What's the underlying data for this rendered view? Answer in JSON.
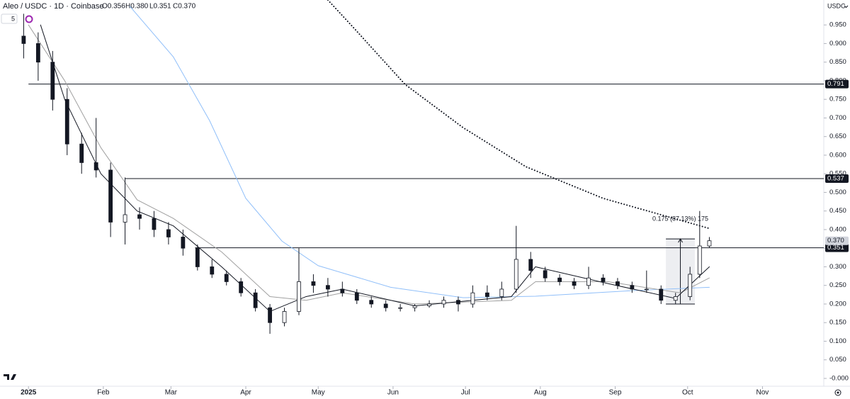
{
  "header": {
    "symbol": "Aleo / USDC · 1D · Coinbase",
    "ohlc": [
      "O0.356",
      "H0.380",
      "L0.351",
      "C0.370"
    ],
    "indicator_count": "5",
    "currency": "USDC"
  },
  "chart_data": {
    "type": "candlestick",
    "up_color": "#ffffff",
    "down_color": "#131722",
    "xlim": [
      -11.8,
      329.4
    ],
    "ylim": [
      -0.021,
      1.017
    ],
    "xticks": [
      {
        "value": 0,
        "label": "2025"
      },
      {
        "value": 31,
        "label": "Feb"
      },
      {
        "value": 59,
        "label": "Mar"
      },
      {
        "value": 90,
        "label": "Apr"
      },
      {
        "value": 120,
        "label": "May"
      },
      {
        "value": 151,
        "label": "Jun"
      },
      {
        "value": 181,
        "label": "Jul"
      },
      {
        "value": 212,
        "label": "Aug"
      },
      {
        "value": 243,
        "label": "Sep"
      },
      {
        "value": 273,
        "label": "Oct"
      },
      {
        "value": 304,
        "label": "Nov"
      }
    ],
    "yticks": [
      {
        "value": 0,
        "label": "-0.000"
      },
      {
        "value": 0.05,
        "label": "0.050"
      },
      {
        "value": 0.1,
        "label": "0.100"
      },
      {
        "value": 0.15,
        "label": "0.150"
      },
      {
        "value": 0.2,
        "label": "0.200"
      },
      {
        "value": 0.25,
        "label": "0.250"
      },
      {
        "value": 0.3,
        "label": "0.300"
      },
      {
        "value": 0.35,
        "label": "0.350"
      },
      {
        "value": 0.4,
        "label": "0.400"
      },
      {
        "value": 0.45,
        "label": "0.450"
      },
      {
        "value": 0.5,
        "label": "0.500"
      },
      {
        "value": 0.55,
        "label": "0.550"
      },
      {
        "value": 0.6,
        "label": "0.600"
      },
      {
        "value": 0.65,
        "label": "0.650"
      },
      {
        "value": 0.7,
        "label": "0.700"
      },
      {
        "value": 0.75,
        "label": "0.750"
      },
      {
        "value": 0.8,
        "label": "0.800"
      },
      {
        "value": 0.85,
        "label": "0.850"
      },
      {
        "value": 0.9,
        "label": "0.900"
      },
      {
        "value": 0.95,
        "label": "0.950"
      }
    ],
    "x": [
      -2,
      4,
      10,
      16,
      22,
      28,
      34,
      40,
      46,
      52,
      58,
      64,
      70,
      76,
      82,
      88,
      94,
      100,
      106,
      112,
      118,
      124,
      130,
      136,
      142,
      148,
      154,
      160,
      166,
      172,
      178,
      184,
      190,
      196,
      202,
      208,
      214,
      220,
      226,
      232,
      238,
      244,
      250,
      256,
      262,
      268,
      274,
      278,
      282
    ],
    "open": [
      0.92,
      0.9,
      0.85,
      0.75,
      0.63,
      0.58,
      0.56,
      0.42,
      0.44,
      0.43,
      0.4,
      0.38,
      0.35,
      0.3,
      0.28,
      0.26,
      0.23,
      0.19,
      0.15,
      0.18,
      0.26,
      0.25,
      0.24,
      0.23,
      0.21,
      0.2,
      0.19,
      0.19,
      0.195,
      0.2,
      0.21,
      0.2,
      0.23,
      0.22,
      0.24,
      0.32,
      0.29,
      0.27,
      0.26,
      0.25,
      0.27,
      0.26,
      0.25,
      0.24,
      0.24,
      0.21,
      0.22,
      0.28,
      0.356
    ],
    "high": [
      0.98,
      0.93,
      0.88,
      0.78,
      0.66,
      0.7,
      0.58,
      0.54,
      0.46,
      0.45,
      0.42,
      0.4,
      0.36,
      0.32,
      0.29,
      0.27,
      0.24,
      0.2,
      0.19,
      0.35,
      0.28,
      0.27,
      0.26,
      0.24,
      0.22,
      0.21,
      0.2,
      0.2,
      0.21,
      0.22,
      0.22,
      0.25,
      0.25,
      0.26,
      0.41,
      0.34,
      0.3,
      0.28,
      0.27,
      0.3,
      0.28,
      0.27,
      0.26,
      0.29,
      0.25,
      0.23,
      0.3,
      0.45,
      0.38
    ],
    "low": [
      0.86,
      0.8,
      0.72,
      0.6,
      0.55,
      0.54,
      0.38,
      0.36,
      0.4,
      0.38,
      0.36,
      0.33,
      0.29,
      0.27,
      0.25,
      0.22,
      0.18,
      0.12,
      0.14,
      0.17,
      0.23,
      0.22,
      0.22,
      0.2,
      0.19,
      0.18,
      0.18,
      0.18,
      0.19,
      0.19,
      0.18,
      0.19,
      0.21,
      0.21,
      0.23,
      0.27,
      0.26,
      0.25,
      0.24,
      0.24,
      0.25,
      0.24,
      0.23,
      0.23,
      0.2,
      0.2,
      0.21,
      0.27,
      0.351
    ],
    "close": [
      0.9,
      0.85,
      0.75,
      0.63,
      0.58,
      0.56,
      0.42,
      0.44,
      0.43,
      0.4,
      0.38,
      0.35,
      0.3,
      0.28,
      0.26,
      0.23,
      0.19,
      0.15,
      0.18,
      0.26,
      0.25,
      0.24,
      0.23,
      0.21,
      0.2,
      0.19,
      0.19,
      0.195,
      0.2,
      0.21,
      0.2,
      0.23,
      0.22,
      0.24,
      0.32,
      0.29,
      0.27,
      0.26,
      0.25,
      0.27,
      0.26,
      0.25,
      0.24,
      0.24,
      0.21,
      0.22,
      0.28,
      0.356,
      0.37
    ],
    "overlays": [
      {
        "color": "#131722",
        "style": "dotted",
        "x": [
          124,
          135,
          156,
          180,
          206,
          238,
          282
        ],
        "values": [
          1.017,
          0.94,
          0.79,
          0.674,
          0.569,
          0.484,
          0.403
        ]
      },
      {
        "color": "#90bff9",
        "style": "solid",
        "x": [
          42,
          60,
          75,
          90,
          105,
          120,
          150,
          180,
          210,
          250,
          282
        ],
        "values": [
          1.0,
          0.864,
          0.693,
          0.484,
          0.369,
          0.303,
          0.245,
          0.217,
          0.221,
          0.236,
          0.245
        ]
      },
      {
        "color": "#a0a0a0",
        "style": "solid",
        "x": [
          0,
          15,
          30,
          45,
          60,
          80,
          100,
          115,
          130,
          160,
          200,
          210,
          240,
          270,
          282
        ],
        "values": [
          0.95,
          0.8,
          0.62,
          0.48,
          0.43,
          0.34,
          0.22,
          0.21,
          0.23,
          0.2,
          0.21,
          0.26,
          0.26,
          0.23,
          0.27
        ]
      },
      {
        "color": "#131722",
        "style": "solid",
        "x": [
          5,
          15,
          30,
          45,
          60,
          80,
          100,
          115,
          130,
          160,
          200,
          210,
          240,
          268,
          282
        ],
        "values": [
          0.95,
          0.75,
          0.55,
          0.45,
          0.41,
          0.3,
          0.18,
          0.22,
          0.24,
          0.195,
          0.22,
          0.3,
          0.255,
          0.215,
          0.3
        ]
      }
    ],
    "hlines": [
      {
        "value": 0.791,
        "label": "0.791",
        "from": 0
      },
      {
        "value": 0.537,
        "label": "0.537",
        "from": 40
      },
      {
        "value": 0.351,
        "label": "0.351",
        "from": 69
      }
    ],
    "last_price": {
      "value": 0.37,
      "label": "0.370"
    },
    "measure": {
      "label": "0.175 (87.13%) 175",
      "x": [
        264,
        276
      ],
      "values": [
        0.2,
        0.375
      ]
    }
  }
}
